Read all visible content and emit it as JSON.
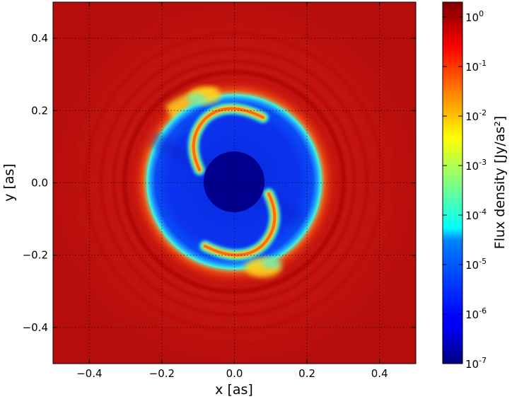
{
  "chart_data": {
    "type": "heatmap",
    "title": "",
    "xlabel": "x [as]",
    "ylabel": "y [as]",
    "xlim": [
      -0.5,
      0.5
    ],
    "ylim": [
      -0.5,
      0.5
    ],
    "x_ticks": [
      -0.4,
      -0.2,
      0.0,
      0.2,
      0.4
    ],
    "y_ticks": [
      -0.4,
      -0.2,
      0.0,
      0.2,
      0.4
    ],
    "x_tick_labels": [
      "−0.4",
      "−0.2",
      "0.0",
      "0.2",
      "0.4"
    ],
    "y_tick_labels": [
      "−0.4",
      "−0.2",
      "0.0",
      "0.2",
      "0.4"
    ],
    "grid": true,
    "colormap": "jet",
    "colorbar": {
      "label": "Flux density [Jy/as²]",
      "scale": "log",
      "range": [
        1e-07,
        2.0
      ],
      "ticks": [
        {
          "base": "10",
          "exp": "0",
          "value": 1.0
        },
        {
          "base": "10",
          "exp": "-1",
          "value": 0.1
        },
        {
          "base": "10",
          "exp": "-2",
          "value": 0.01
        },
        {
          "base": "10",
          "exp": "-3",
          "value": 0.001
        },
        {
          "base": "10",
          "exp": "-4",
          "value": 0.0001
        },
        {
          "base": "10",
          "exp": "-5",
          "value": 1e-05
        },
        {
          "base": "10",
          "exp": "-6",
          "value": 1e-06
        },
        {
          "base": "10",
          "exp": "-7",
          "value": 1e-07
        }
      ]
    },
    "features": {
      "background_flux": 1.5,
      "gap_outer_radius": 0.24,
      "inner_mask_radius": 0.085,
      "gap_flux_min": 1e-07,
      "gap_flux_typical": 1e-06,
      "spiral_arm_flux": 0.1
    }
  }
}
